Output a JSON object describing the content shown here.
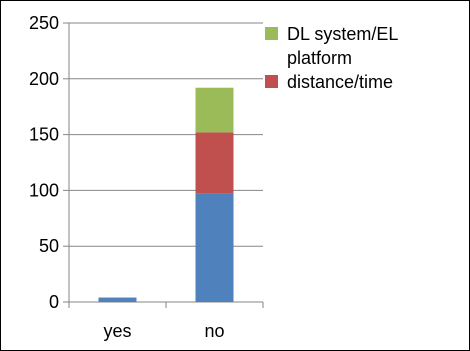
{
  "chart_data": {
    "type": "bar",
    "stacked": true,
    "categories": [
      "yes",
      "no"
    ],
    "series": [
      {
        "name": "",
        "color": "#4F81BD",
        "values": [
          4,
          97
        ]
      },
      {
        "name": "distance/time",
        "color": "#C0504D",
        "values": [
          0,
          55
        ]
      },
      {
        "name": "DL system/EL platform",
        "color": "#9BBB59",
        "values": [
          0,
          40
        ]
      }
    ],
    "ylim": [
      0,
      250
    ],
    "yticks": [
      "0",
      "50",
      "100",
      "150",
      "200",
      "250"
    ],
    "grid": true,
    "legend_position": "right",
    "legend": [
      {
        "series": 2,
        "lines": [
          "DL system/EL",
          "platform"
        ]
      },
      {
        "series": 1,
        "lines": [
          "distance/time"
        ]
      }
    ]
  }
}
